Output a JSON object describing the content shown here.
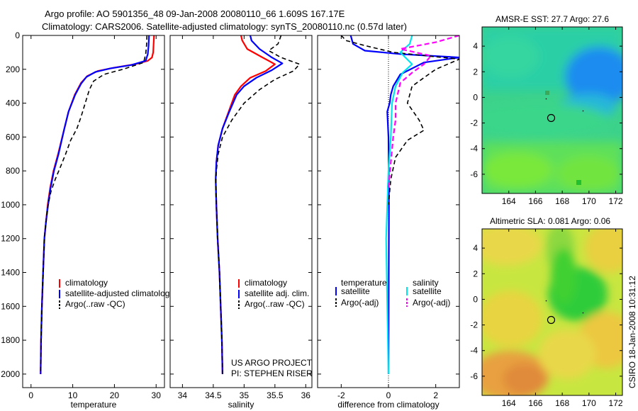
{
  "header": {
    "line1": "Argo profile: AO 5901356_48 09-Jan-2008 20080110_66 1.609S 167.17E",
    "line2": "Climatology: CARS2006. Satellite-adjusted climatology: synTS_20080110.nc (0.57d later)"
  },
  "side_label": "CSIRO 18-Jan-2008 10:31:12",
  "chart_data": [
    {
      "id": "temperature-profile",
      "type": "line",
      "xlabel": "temperature",
      "ylabel": "",
      "xlim": [
        -2,
        32
      ],
      "ylim": [
        2080,
        0
      ],
      "xticks": [
        0,
        10,
        20,
        30
      ],
      "yticks": [
        0,
        200,
        400,
        600,
        800,
        1000,
        1200,
        1400,
        1600,
        1800,
        2000
      ],
      "legend": [
        "climatology",
        "satellite-adjusted climatolog",
        "Argo(..raw -QC)"
      ],
      "series": [
        {
          "name": "climatology",
          "color": "#ff0000",
          "width": 2.2,
          "dash": "",
          "x": [
            29.5,
            29.4,
            29.3,
            29.0,
            28.0,
            25.0,
            20.0,
            16.0,
            13.5,
            12.0,
            10.5,
            9.0,
            8.0,
            6.5,
            5.4,
            4.6,
            4.0,
            3.6,
            3.2,
            2.9,
            2.6,
            2.4,
            2.3
          ],
          "y": [
            0,
            50,
            100,
            130,
            150,
            170,
            190,
            210,
            240,
            280,
            350,
            450,
            550,
            700,
            800,
            900,
            1000,
            1100,
            1200,
            1400,
            1600,
            1800,
            2000
          ]
        },
        {
          "name": "satellite-adjusted climatolog",
          "color": "#0000ff",
          "width": 2.2,
          "dash": "",
          "x": [
            28.3,
            28.2,
            28.0,
            27.5,
            24.0,
            19.0,
            15.5,
            13.3,
            12.0,
            10.6,
            9.0,
            8.0,
            6.6,
            5.5,
            4.7,
            4.1,
            3.6,
            3.2,
            2.9,
            2.6,
            2.4,
            2.3
          ],
          "y": [
            0,
            60,
            110,
            150,
            175,
            195,
            215,
            245,
            285,
            350,
            450,
            550,
            700,
            800,
            900,
            1000,
            1100,
            1200,
            1400,
            1600,
            1800,
            2000
          ]
        },
        {
          "name": "Argo(..raw -QC)",
          "color": "#000000",
          "width": 1.6,
          "dash": "6,4",
          "x": [
            27.8,
            27.7,
            27.5,
            27.0,
            22.0,
            17.5,
            15.0,
            14.0,
            13.0,
            12.0,
            11.0,
            9.5,
            8.3,
            7.0,
            5.8,
            4.8,
            4.1,
            3.6,
            3.2,
            2.9,
            2.6,
            2.4,
            2.3
          ],
          "y": [
            0,
            60,
            110,
            160,
            200,
            230,
            270,
            320,
            400,
            480,
            550,
            620,
            700,
            780,
            850,
            920,
            1000,
            1100,
            1200,
            1400,
            1600,
            1800,
            2000
          ]
        }
      ]
    },
    {
      "id": "salinity-profile",
      "type": "line",
      "xlabel": "salinity",
      "ylabel": "",
      "xlim": [
        33.8,
        36.1
      ],
      "ylim": [
        2080,
        0
      ],
      "xticks": [
        34,
        34.5,
        35,
        35.5,
        36
      ],
      "yticks": [
        0,
        200,
        400,
        600,
        800,
        1000,
        1200,
        1400,
        1600,
        1800,
        2000
      ],
      "legend": [
        "climatology",
        "satellite adj. clim.",
        "Argo(..raw -QC)"
      ],
      "annotations": [
        "US ARGO PROJECT",
        "PI: STEPHEN RISER"
      ],
      "series": [
        {
          "name": "climatology",
          "color": "#ff0000",
          "width": 2.2,
          "dash": "",
          "x": [
            34.95,
            34.97,
            35.05,
            35.3,
            35.5,
            35.35,
            35.1,
            34.95,
            34.85,
            34.75,
            34.65,
            34.58,
            34.55,
            34.54,
            34.55,
            34.57,
            34.6,
            34.62,
            34.64,
            34.65
          ],
          "y": [
            0,
            30,
            80,
            130,
            170,
            210,
            250,
            300,
            350,
            450,
            550,
            650,
            750,
            850,
            1000,
            1200,
            1400,
            1600,
            1800,
            2000
          ]
        },
        {
          "name": "satellite adj. clim.",
          "color": "#0000ff",
          "width": 2.2,
          "dash": "",
          "x": [
            35.1,
            35.12,
            35.25,
            35.45,
            35.62,
            35.45,
            35.2,
            35.0,
            34.88,
            34.76,
            34.65,
            34.58,
            34.55,
            34.54,
            34.55,
            34.57,
            34.6,
            34.62,
            34.64,
            34.65
          ],
          "y": [
            0,
            30,
            80,
            130,
            165,
            205,
            250,
            300,
            350,
            450,
            550,
            650,
            750,
            850,
            1000,
            1200,
            1400,
            1600,
            1800,
            2000
          ]
        },
        {
          "name": "Argo(..raw -QC)",
          "color": "#000000",
          "width": 1.6,
          "dash": "6,4",
          "x": [
            35.6,
            35.55,
            35.4,
            35.6,
            35.9,
            35.8,
            35.5,
            35.25,
            35.0,
            34.8,
            34.65,
            34.58,
            34.55,
            34.54,
            34.55,
            34.57,
            34.6,
            34.62,
            34.64,
            34.65
          ],
          "y": [
            0,
            50,
            90,
            130,
            170,
            210,
            260,
            320,
            400,
            500,
            600,
            700,
            800,
            900,
            1000,
            1200,
            1400,
            1600,
            1800,
            2000
          ]
        }
      ]
    },
    {
      "id": "difference-profile",
      "type": "line",
      "xlabel": "difference from climatology",
      "ylabel": "",
      "xlim": [
        -3,
        3
      ],
      "ylim": [
        2080,
        0
      ],
      "xticks": [
        -2,
        0,
        2
      ],
      "yticks": [
        0,
        200,
        400,
        600,
        800,
        1000,
        1200,
        1400,
        1600,
        1800,
        2000
      ],
      "zero_line": 0,
      "legend_group1_title": "temperature",
      "legend_group2_title": "salinity",
      "legend": [
        "satellite",
        "Argo(-adj)",
        "satellite",
        "Argo(-adj)"
      ],
      "series": [
        {
          "name": "temperature satellite",
          "color": "#0000ff",
          "width": 2.2,
          "dash": "",
          "x": [
            -1.6,
            -1.5,
            -1.0,
            0.5,
            3.0,
            1.5,
            0.5,
            0.2,
            0.1,
            0.05,
            -0.05,
            0.0,
            0.02,
            0.0
          ],
          "y": [
            0,
            50,
            90,
            110,
            130,
            160,
            230,
            300,
            350,
            400,
            450,
            600,
            1000,
            2000
          ]
        },
        {
          "name": "temperature Argo(-adj)",
          "color": "#000000",
          "width": 1.6,
          "dash": "6,4",
          "x": [
            -2.0,
            -1.8,
            -1.0,
            0.2,
            3.0,
            2.0,
            1.5,
            1.0,
            0.8,
            1.3,
            1.5,
            0.8,
            0.3,
            0.1,
            0.0
          ],
          "y": [
            0,
            30,
            60,
            100,
            140,
            200,
            250,
            300,
            400,
            500,
            560,
            620,
            720,
            850,
            1000
          ]
        },
        {
          "name": "salinity satellite",
          "color": "#00e5ee",
          "width": 2.2,
          "dash": "",
          "x": [
            1.0,
            0.9,
            0.5,
            1.0,
            0.6,
            0.3,
            0.15,
            0.1,
            0.0,
            -0.1,
            0.0
          ],
          "y": [
            0,
            50,
            100,
            170,
            220,
            300,
            400,
            600,
            800,
            1200,
            2000
          ]
        },
        {
          "name": "salinity Argo(-adj)",
          "color": "#ff00ff",
          "width": 2.2,
          "dash": "7,4",
          "x": [
            3.0,
            2.0,
            0.5,
            1.8,
            1.5,
            1.0,
            0.5,
            0.3,
            0.3,
            0.2,
            0.1,
            0.0
          ],
          "y": [
            0,
            40,
            80,
            120,
            170,
            220,
            280,
            400,
            500,
            600,
            750,
            900
          ]
        }
      ]
    },
    {
      "id": "sst-map",
      "type": "heatmap",
      "title": "AMSR-E SST: 27.7 Argo: 27.6",
      "xlim": [
        162,
        172.5
      ],
      "ylim": [
        -7.5,
        5.5
      ],
      "xticks": [
        164,
        166,
        168,
        170,
        172
      ],
      "yticks": [
        -6,
        -4,
        -2,
        0,
        2,
        4
      ],
      "marker": {
        "lon": 167.17,
        "lat": -1.609
      }
    },
    {
      "id": "sla-map",
      "type": "heatmap",
      "title": "Altimetric SLA: 0.081 Argo: 0.06",
      "xlim": [
        162,
        172.5
      ],
      "ylim": [
        -7.5,
        5.5
      ],
      "xticks": [
        164,
        166,
        168,
        170,
        172
      ],
      "yticks": [
        -6,
        -4,
        -2,
        0,
        2,
        4
      ],
      "marker": {
        "lon": 167.17,
        "lat": -1.609
      }
    }
  ]
}
